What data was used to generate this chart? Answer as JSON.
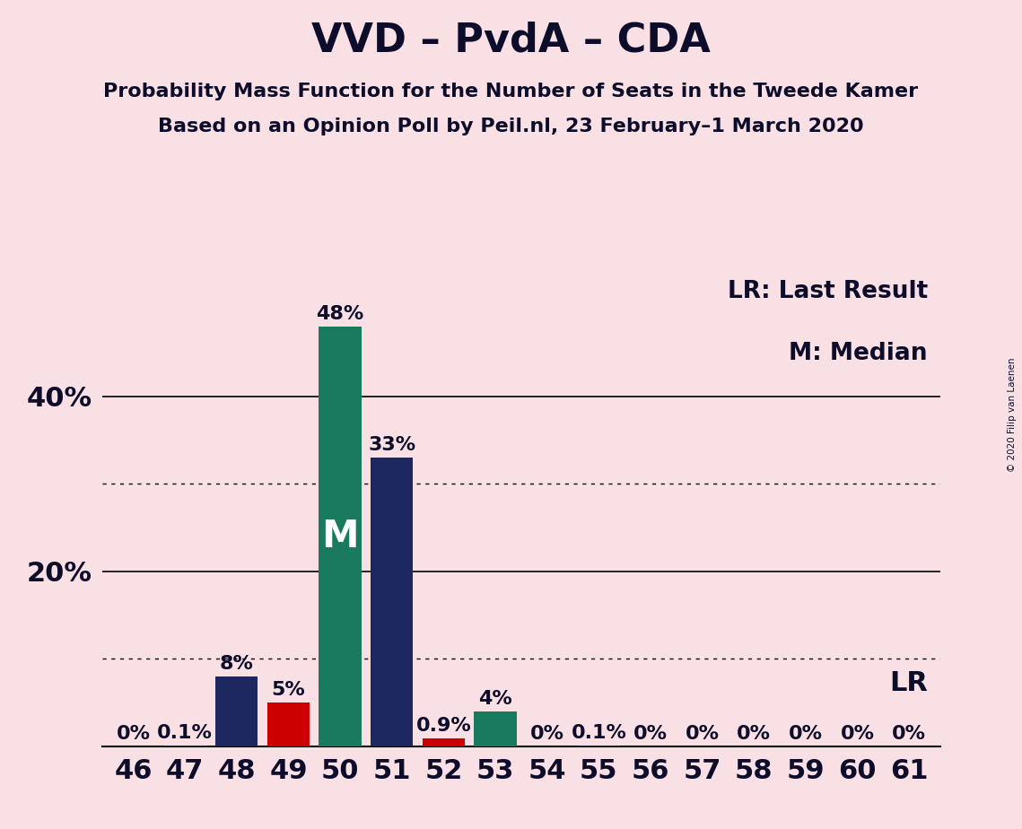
{
  "title": "VVD – PvdA – CDA",
  "subtitle1": "Probability Mass Function for the Number of Seats in the Tweede Kamer",
  "subtitle2": "Based on an Opinion Poll by Peil.nl, 23 February–1 March 2020",
  "copyright": "© 2020 Filip van Laenen",
  "categories": [
    46,
    47,
    48,
    49,
    50,
    51,
    52,
    53,
    54,
    55,
    56,
    57,
    58,
    59,
    60,
    61
  ],
  "values": [
    0.0,
    0.1,
    8.0,
    5.0,
    48.0,
    33.0,
    0.9,
    4.0,
    0.0,
    0.1,
    0.0,
    0.0,
    0.0,
    0.0,
    0.0,
    0.0
  ],
  "bar_colors": [
    "#1c2760",
    "#1c2760",
    "#1c2760",
    "#cc0000",
    "#1a7a5e",
    "#1c2760",
    "#cc0000",
    "#1a7a5e",
    "#1c2760",
    "#1c2760",
    "#1c2760",
    "#1c2760",
    "#1c2760",
    "#1c2760",
    "#1c2760",
    "#1c2760"
  ],
  "label_texts": [
    "0%",
    "0.1%",
    "8%",
    "5%",
    "48%",
    "33%",
    "0.9%",
    "4%",
    "0%",
    "0.1%",
    "0%",
    "0%",
    "0%",
    "0%",
    "0%",
    "0%"
  ],
  "median_seat": 50,
  "lr_seat": 51,
  "lr_label": "LR",
  "median_label": "M",
  "ylim": [
    0,
    55
  ],
  "ytick_positions": [
    20,
    40
  ],
  "ytick_labels": [
    "20%",
    "40%"
  ],
  "solid_gridlines": [
    20,
    40
  ],
  "dotted_gridlines": [
    10,
    30
  ],
  "legend_lr": "LR: Last Result",
  "legend_m": "M: Median",
  "background_color": "#f9e0e4",
  "title_color": "#0d0d2b",
  "bar_label_color_dark": "#0d0d2b",
  "bar_label_color_white": "#ffffff",
  "title_fontsize": 32,
  "subtitle_fontsize": 16,
  "tick_fontsize": 22,
  "bar_label_fontsize": 16,
  "legend_fontsize": 19,
  "median_text_fontsize": 30,
  "lr_text_fontsize": 22,
  "bar_width": 0.82
}
